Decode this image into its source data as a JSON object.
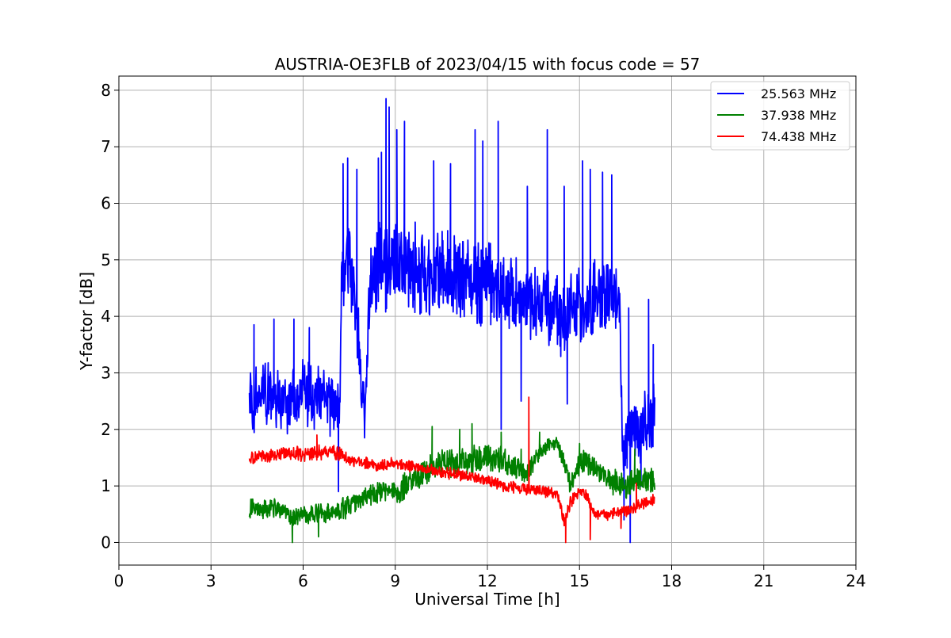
{
  "chart_data": {
    "type": "line",
    "title": "AUSTRIA-OE3FLB of 2023/04/15 with focus code = 57",
    "xlabel": "Universal Time [h]",
    "ylabel": "Y-factor [dB]",
    "xlim": [
      0,
      24
    ],
    "ylim": [
      -0.4,
      8.25
    ],
    "xticks": [
      "0",
      "3",
      "6",
      "9",
      "12",
      "15",
      "18",
      "21",
      "24"
    ],
    "yticks": [
      "0",
      "1",
      "2",
      "3",
      "4",
      "5",
      "6",
      "7",
      "8"
    ],
    "grid": true,
    "legend_position": "top-right",
    "series": [
      {
        "name": "25.563 MHz",
        "color": "#0000ff",
        "t": [
          4.25,
          4.5,
          5.0,
          5.5,
          6.0,
          6.5,
          7.0,
          7.2,
          7.25,
          7.5,
          7.7,
          7.9,
          8.0,
          8.2,
          8.5,
          9.0,
          9.5,
          10.0,
          10.5,
          11.0,
          11.5,
          12.0,
          12.5,
          13.0,
          13.5,
          14.0,
          14.5,
          15.0,
          15.5,
          16.0,
          16.3,
          16.4,
          16.7,
          17.0,
          17.3,
          17.45
        ],
        "mean": [
          2.5,
          2.6,
          2.6,
          2.5,
          2.6,
          2.6,
          2.4,
          2.5,
          4.8,
          5.0,
          4.4,
          2.6,
          2.4,
          4.6,
          5.0,
          4.9,
          4.9,
          4.7,
          4.7,
          4.7,
          4.6,
          4.6,
          4.5,
          4.3,
          4.3,
          4.2,
          3.9,
          4.2,
          4.3,
          4.3,
          4.2,
          1.8,
          1.9,
          2.0,
          2.2,
          2.3
        ],
        "spread": [
          0.8,
          0.8,
          0.7,
          0.7,
          0.7,
          0.7,
          0.7,
          0.6,
          0.9,
          0.9,
          0.9,
          0.5,
          0.5,
          0.9,
          1.0,
          1.0,
          0.9,
          0.9,
          0.9,
          0.9,
          0.9,
          0.9,
          0.9,
          0.8,
          0.8,
          0.8,
          0.8,
          0.8,
          0.8,
          0.8,
          0.8,
          0.6,
          0.7,
          0.7,
          0.7,
          0.7
        ],
        "peaks": [
          [
            4.4,
            3.85
          ],
          [
            5.05,
            3.95
          ],
          [
            5.7,
            3.95
          ],
          [
            6.2,
            3.8
          ],
          [
            7.3,
            6.7
          ],
          [
            7.45,
            6.8
          ],
          [
            7.75,
            6.6
          ],
          [
            8.45,
            6.8
          ],
          [
            8.55,
            6.9
          ],
          [
            8.7,
            7.85
          ],
          [
            8.8,
            7.7
          ],
          [
            9.05,
            7.3
          ],
          [
            9.3,
            7.45
          ],
          [
            10.25,
            6.75
          ],
          [
            10.8,
            6.7
          ],
          [
            11.6,
            7.3
          ],
          [
            11.85,
            7.1
          ],
          [
            12.35,
            7.45
          ],
          [
            13.3,
            6.3
          ],
          [
            13.95,
            7.3
          ],
          [
            14.5,
            6.3
          ],
          [
            15.1,
            6.75
          ],
          [
            15.35,
            6.6
          ],
          [
            15.75,
            6.55
          ],
          [
            16.05,
            6.5
          ],
          [
            16.6,
            4.15
          ],
          [
            17.25,
            4.3
          ],
          [
            17.4,
            3.5
          ]
        ],
        "dips": [
          [
            7.15,
            0.9
          ],
          [
            8.0,
            1.85
          ],
          [
            12.45,
            2.0
          ],
          [
            13.1,
            2.5
          ],
          [
            14.6,
            2.45
          ],
          [
            16.45,
            0.4
          ],
          [
            16.65,
            0.0
          ],
          [
            17.0,
            1.0
          ]
        ]
      },
      {
        "name": "37.938 MHz",
        "color": "#008000",
        "t": [
          4.25,
          4.5,
          5.0,
          5.5,
          5.7,
          6.0,
          6.5,
          7.0,
          7.5,
          8.0,
          8.5,
          9.0,
          9.5,
          10.0,
          10.5,
          11.0,
          11.5,
          12.0,
          12.5,
          13.0,
          13.3,
          13.5,
          14.0,
          14.3,
          14.5,
          14.7,
          15.0,
          15.2,
          15.5,
          16.0,
          16.5,
          17.0,
          17.45
        ],
        "mean": [
          0.65,
          0.6,
          0.6,
          0.5,
          0.4,
          0.5,
          0.5,
          0.55,
          0.65,
          0.8,
          0.9,
          0.9,
          1.05,
          1.25,
          1.4,
          1.4,
          1.45,
          1.5,
          1.45,
          1.3,
          1.2,
          1.45,
          1.75,
          1.75,
          1.4,
          1.0,
          1.4,
          1.45,
          1.3,
          1.1,
          1.05,
          1.1,
          1.1
        ],
        "spread": [
          0.25,
          0.2,
          0.2,
          0.2,
          0.2,
          0.2,
          0.2,
          0.2,
          0.25,
          0.25,
          0.25,
          0.25,
          0.3,
          0.3,
          0.3,
          0.3,
          0.3,
          0.3,
          0.3,
          0.25,
          0.2,
          0.2,
          0.15,
          0.15,
          0.2,
          0.2,
          0.25,
          0.25,
          0.25,
          0.25,
          0.3,
          0.3,
          0.3
        ],
        "peaks": [
          [
            10.2,
            2.05
          ],
          [
            11.1,
            2.0
          ],
          [
            11.5,
            2.1
          ],
          [
            12.45,
            1.95
          ],
          [
            13.1,
            1.65
          ],
          [
            13.7,
            1.95
          ],
          [
            15.0,
            1.75
          ],
          [
            16.8,
            1.65
          ]
        ],
        "dips": [
          [
            5.65,
            0.0
          ],
          [
            6.5,
            0.1
          ]
        ]
      },
      {
        "name": "74.438 MHz",
        "color": "#ff0000",
        "t": [
          4.25,
          4.5,
          5.0,
          5.5,
          6.0,
          6.5,
          7.0,
          7.5,
          8.0,
          8.5,
          9.0,
          9.5,
          10.0,
          10.5,
          11.0,
          11.5,
          12.0,
          12.5,
          13.0,
          13.3,
          13.5,
          14.0,
          14.3,
          14.5,
          14.7,
          15.0,
          15.2,
          15.5,
          16.0,
          16.5,
          17.0,
          17.45
        ],
        "mean": [
          1.45,
          1.5,
          1.55,
          1.6,
          1.55,
          1.6,
          1.6,
          1.45,
          1.4,
          1.35,
          1.4,
          1.35,
          1.3,
          1.25,
          1.2,
          1.15,
          1.1,
          1.0,
          0.95,
          0.95,
          0.95,
          0.9,
          0.85,
          0.35,
          0.7,
          0.95,
          0.85,
          0.5,
          0.5,
          0.55,
          0.7,
          0.75
        ],
        "spread": [
          0.15,
          0.15,
          0.15,
          0.15,
          0.15,
          0.15,
          0.15,
          0.15,
          0.12,
          0.12,
          0.12,
          0.12,
          0.12,
          0.12,
          0.12,
          0.12,
          0.12,
          0.12,
          0.12,
          0.12,
          0.12,
          0.12,
          0.12,
          0.15,
          0.15,
          0.12,
          0.12,
          0.12,
          0.12,
          0.12,
          0.15,
          0.15
        ],
        "peaks": [
          [
            6.45,
            1.9
          ],
          [
            13.35,
            2.57
          ],
          [
            16.85,
            1.05
          ]
        ],
        "dips": [
          [
            14.55,
            0.0
          ],
          [
            15.35,
            0.05
          ],
          [
            16.35,
            0.25
          ]
        ]
      }
    ]
  }
}
